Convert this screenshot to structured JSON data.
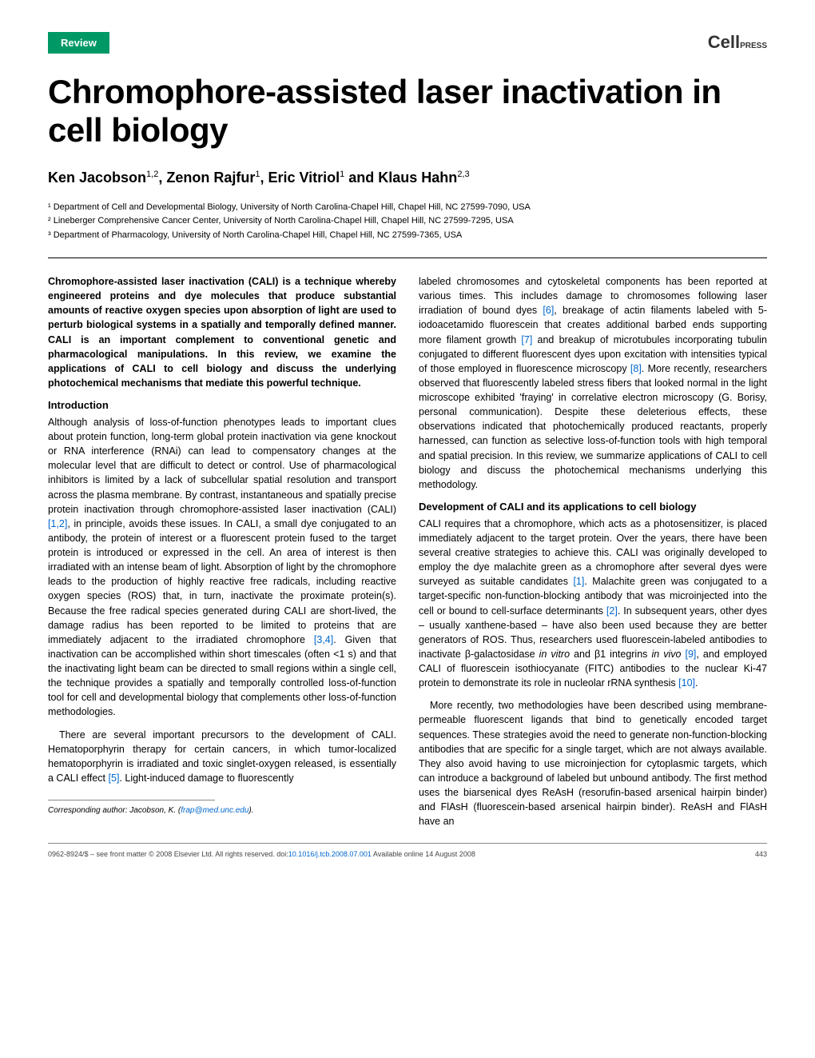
{
  "badge": "Review",
  "logo": {
    "text": "Cell",
    "sub": "PRESS"
  },
  "title": "Chromophore-assisted laser inactivation in cell biology",
  "authors_html": "Ken Jacobson<sup>1,2</sup>, Zenon Rajfur<sup>1</sup>, Eric Vitriol<sup>1</sup> and Klaus Hahn<sup>2,3</sup>",
  "affiliations": [
    "¹ Department of Cell and Developmental Biology, University of North Carolina-Chapel Hill, Chapel Hill, NC 27599-7090, USA",
    "² Lineberger Comprehensive Cancer Center, University of North Carolina-Chapel Hill, Chapel Hill, NC 27599-7295, USA",
    "³ Department of Pharmacology, University of North Carolina-Chapel Hill, Chapel Hill, NC 27599-7365, USA"
  ],
  "abstract": "Chromophore-assisted laser inactivation (CALI) is a technique whereby engineered proteins and dye molecules that produce substantial amounts of reactive oxygen species upon absorption of light are used to perturb biological systems in a spatially and temporally defined manner. CALI is an important complement to conventional genetic and pharmacological manipulations. In this review, we examine the applications of CALI to cell biology and discuss the underlying photochemical mechanisms that mediate this powerful technique.",
  "sections": {
    "intro_heading": "Introduction",
    "intro_p1": "Although analysis of loss-of-function phenotypes leads to important clues about protein function, long-term global protein inactivation via gene knockout or RNA interference (RNAi) can lead to compensatory changes at the molecular level that are difficult to detect or control. Use of pharmacological inhibitors is limited by a lack of subcellular spatial resolution and transport across the plasma membrane. By contrast, instantaneous and spatially precise protein inactivation through chromophore-assisted laser inactivation (CALI) [1,2], in principle, avoids these issues. In CALI, a small dye conjugated to an antibody, the protein of interest or a fluorescent protein fused to the target protein is introduced or expressed in the cell. An area of interest is then irradiated with an intense beam of light. Absorption of light by the chromophore leads to the production of highly reactive free radicals, including reactive oxygen species (ROS) that, in turn, inactivate the proximate protein(s). Because the free radical species generated during CALI are short-lived, the damage radius has been reported to be limited to proteins that are immediately adjacent to the irradiated chromophore [3,4]. Given that inactivation can be accomplished within short timescales (often <1 s) and that the inactivating light beam can be directed to small regions within a single cell, the technique provides a spatially and temporally controlled loss-of-function tool for cell and developmental biology that complements other loss-of-function methodologies.",
    "intro_p2": "There are several important precursors to the development of CALI. Hematoporphyrin therapy for certain cancers, in which tumor-localized hematoporphyrin is irradiated and toxic singlet-oxygen released, is essentially a CALI effect [5]. Light-induced damage to fluorescently",
    "col2_p1": "labeled chromosomes and cytoskeletal components has been reported at various times. This includes damage to chromosomes following laser irradiation of bound dyes [6], breakage of actin filaments labeled with 5-iodoacetamido fluorescein that creates additional barbed ends supporting more filament growth [7] and breakup of microtubules incorporating tubulin conjugated to different fluorescent dyes upon excitation with intensities typical of those employed in fluorescence microscopy [8]. More recently, researchers observed that fluorescently labeled stress fibers that looked normal in the light microscope exhibited 'fraying' in correlative electron microscopy (G. Borisy, personal communication). Despite these deleterious effects, these observations indicated that photochemically produced reactants, properly harnessed, can function as selective loss-of-function tools with high temporal and spatial precision. In this review, we summarize applications of CALI to cell biology and discuss the photochemical mechanisms underlying this methodology.",
    "dev_heading": "Development of CALI and its applications to cell biology",
    "dev_p1": "CALI requires that a chromophore, which acts as a photosensitizer, is placed immediately adjacent to the target protein. Over the years, there have been several creative strategies to achieve this. CALI was originally developed to employ the dye malachite green as a chromophore after several dyes were surveyed as suitable candidates [1]. Malachite green was conjugated to a target-specific non-function-blocking antibody that was microinjected into the cell or bound to cell-surface determinants [2]. In subsequent years, other dyes – usually xanthene-based – have also been used because they are better generators of ROS. Thus, researchers used fluorescein-labeled antibodies to inactivate β-galactosidase in vitro and β1 integrins in vivo [9], and employed CALI of fluorescein isothiocyanate (FITC) antibodies to the nuclear Ki-47 protein to demonstrate its role in nucleolar rRNA synthesis [10].",
    "dev_p2": "More recently, two methodologies have been described using membrane-permeable fluorescent ligands that bind to genetically encoded target sequences. These strategies avoid the need to generate non-function-blocking antibodies that are specific for a single target, which are not always available. They also avoid having to use microinjection for cytoplasmic targets, which can introduce a background of labeled but unbound antibody. The first method uses the biarsenical dyes ReAsH (resorufin-based arsenical hairpin binder) and FlAsH (fluorescein-based arsenical hairpin binder). ReAsH and FlAsH have an"
  },
  "corresponding": {
    "label": "Corresponding author:",
    "name": "Jacobson, K.",
    "email": "frap@med.unc.edu"
  },
  "footer": {
    "left": "0962-8924/$ – see front matter © 2008 Elsevier Ltd. All rights reserved. doi:",
    "doi": "10.1016/j.tcb.2008.07.001",
    "avail": " Available online 14 August 2008",
    "page": "443"
  },
  "colors": {
    "badge_bg": "#009966",
    "link": "#0066cc",
    "text": "#000000",
    "bg": "#ffffff"
  }
}
